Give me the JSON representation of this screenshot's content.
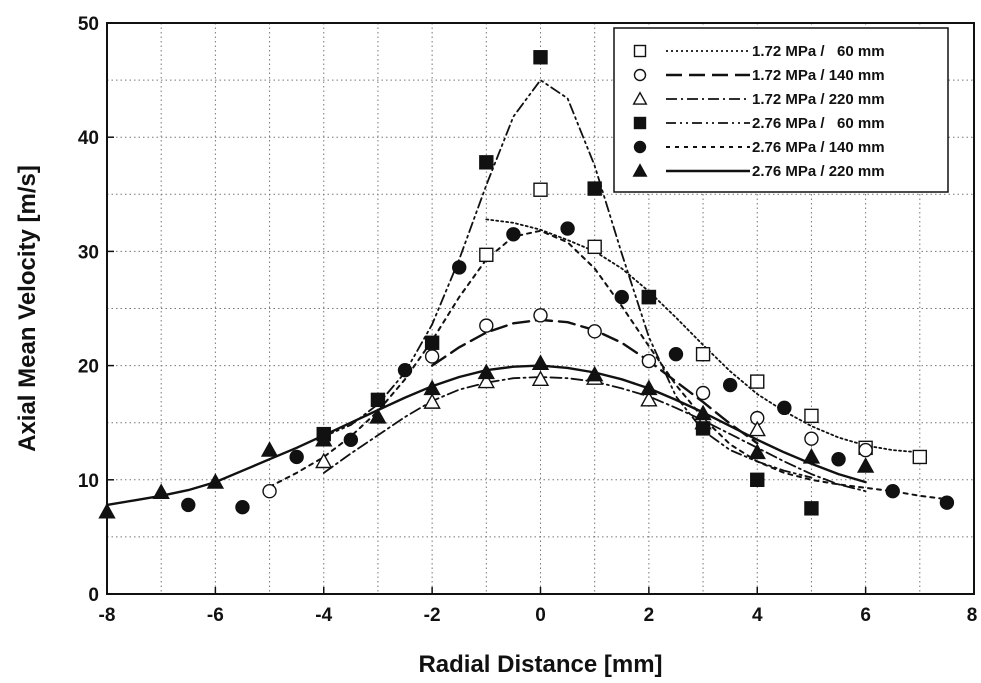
{
  "chart_data": {
    "type": "scatter",
    "title": "",
    "xlabel": "Radial Distance [mm]",
    "ylabel": "Axial Mean Velocity [m/s]",
    "xlim": [
      -8,
      8
    ],
    "ylim": [
      0,
      50
    ],
    "x_ticks": [
      -8,
      -6,
      -4,
      -2,
      0,
      2,
      4,
      6,
      8
    ],
    "y_ticks": [
      0,
      10,
      20,
      30,
      40,
      50
    ],
    "x_tick_labels": [
      "-8",
      "-6",
      "-4",
      "-2",
      "0",
      "2",
      "4",
      "6",
      "8"
    ],
    "y_tick_labels": [
      "0",
      "10",
      "20",
      "30",
      "40",
      "50"
    ],
    "grid": true,
    "legend_position": "top-right",
    "series": [
      {
        "name": "1.72 MPa /   60 mm",
        "marker": "square-open",
        "line_style": "dotted",
        "points": [
          [
            -1,
            29.7
          ],
          [
            0,
            35.4
          ],
          [
            1,
            30.4
          ],
          [
            2,
            26.0
          ],
          [
            3,
            21.0
          ],
          [
            4,
            18.6
          ],
          [
            5,
            15.6
          ],
          [
            6,
            12.8
          ],
          [
            7,
            12.0
          ]
        ],
        "fit": [
          [
            -1,
            32.8
          ],
          [
            -0.5,
            32.5
          ],
          [
            0,
            31.9
          ],
          [
            0.5,
            31.0
          ],
          [
            1,
            30.0
          ],
          [
            1.5,
            28.5
          ],
          [
            2,
            26.5
          ],
          [
            2.5,
            24.2
          ],
          [
            3,
            21.8
          ],
          [
            3.5,
            19.5
          ],
          [
            4,
            17.5
          ],
          [
            4.5,
            16.0
          ],
          [
            5,
            14.7
          ],
          [
            5.5,
            13.7
          ],
          [
            6,
            13.0
          ],
          [
            6.5,
            12.6
          ],
          [
            7,
            12.4
          ]
        ]
      },
      {
        "name": "1.72 MPa / 140 mm",
        "marker": "circle-open",
        "line_style": "long-dash",
        "points": [
          [
            -5,
            9.0
          ],
          [
            -2,
            20.8
          ],
          [
            -1,
            23.5
          ],
          [
            0,
            24.4
          ],
          [
            1,
            23.0
          ],
          [
            2,
            20.4
          ],
          [
            3,
            17.6
          ],
          [
            4,
            15.4
          ],
          [
            5,
            13.6
          ],
          [
            6,
            12.6
          ]
        ],
        "fit": [
          [
            -2,
            20.0
          ],
          [
            -1.5,
            21.6
          ],
          [
            -1,
            22.9
          ],
          [
            -0.5,
            23.7
          ],
          [
            0,
            24.0
          ],
          [
            0.5,
            23.8
          ],
          [
            1,
            23.1
          ],
          [
            1.5,
            22.0
          ],
          [
            2,
            20.4
          ],
          [
            2.5,
            18.6
          ],
          [
            3,
            16.8
          ],
          [
            3.5,
            14.9
          ],
          [
            4,
            13.2
          ]
        ]
      },
      {
        "name": "1.72 MPa / 220 mm",
        "marker": "triangle-open",
        "line_style": "dash-dot",
        "points": [
          [
            -4,
            11.6
          ],
          [
            -2,
            16.8
          ],
          [
            -1,
            18.6
          ],
          [
            0,
            18.8
          ],
          [
            1,
            18.9
          ],
          [
            2,
            17.0
          ],
          [
            3,
            15.0
          ],
          [
            4,
            14.4
          ]
        ],
        "fit": [
          [
            -4,
            10.6
          ],
          [
            -3.5,
            12.3
          ],
          [
            -3,
            13.9
          ],
          [
            -2.5,
            15.5
          ],
          [
            -2,
            16.9
          ],
          [
            -1.5,
            17.9
          ],
          [
            -1,
            18.5
          ],
          [
            -0.5,
            18.9
          ],
          [
            0,
            19.0
          ],
          [
            0.5,
            18.9
          ],
          [
            1,
            18.6
          ],
          [
            1.5,
            18.0
          ],
          [
            2,
            17.3
          ],
          [
            2.5,
            16.3
          ],
          [
            3,
            15.2
          ],
          [
            3.5,
            14.0
          ],
          [
            4,
            12.8
          ],
          [
            4.5,
            11.6
          ],
          [
            5,
            10.5
          ],
          [
            5.5,
            9.6
          ],
          [
            6,
            9.0
          ]
        ]
      },
      {
        "name": "2.76 MPa /   60 mm",
        "marker": "square-filled",
        "line_style": "dash-dot-dot",
        "points": [
          [
            -4,
            14.0
          ],
          [
            -3,
            17.0
          ],
          [
            -2,
            22.0
          ],
          [
            -1,
            37.8
          ],
          [
            0,
            47.0
          ],
          [
            1,
            35.5
          ],
          [
            2,
            26.0
          ],
          [
            3,
            14.5
          ],
          [
            4,
            10.0
          ],
          [
            5,
            7.5
          ]
        ],
        "fit": [
          [
            -4,
            13.8
          ],
          [
            -3.5,
            14.8
          ],
          [
            -3,
            16.6
          ],
          [
            -2.5,
            19.4
          ],
          [
            -2,
            23.6
          ],
          [
            -1.5,
            29.3
          ],
          [
            -1,
            35.8
          ],
          [
            -0.5,
            41.8
          ],
          [
            0,
            45.0
          ],
          [
            0.5,
            43.4
          ],
          [
            1,
            37.5
          ],
          [
            1.5,
            29.8
          ],
          [
            2,
            22.5
          ],
          [
            2.5,
            17.3
          ],
          [
            3,
            14.3
          ],
          [
            3.5,
            12.6
          ],
          [
            4,
            11.6
          ],
          [
            4.5,
            10.8
          ],
          [
            5,
            10.2
          ]
        ]
      },
      {
        "name": "2.76 MPa / 140 mm",
        "marker": "circle-filled",
        "line_style": "short-dash",
        "points": [
          [
            -6.5,
            7.8
          ],
          [
            -5.5,
            7.6
          ],
          [
            -4.5,
            12.0
          ],
          [
            -3.5,
            13.5
          ],
          [
            -2.5,
            19.6
          ],
          [
            -1.5,
            28.6
          ],
          [
            -0.5,
            31.5
          ],
          [
            0.5,
            32.0
          ],
          [
            1.5,
            26.0
          ],
          [
            2.5,
            21.0
          ],
          [
            3.5,
            18.3
          ],
          [
            4.5,
            16.3
          ],
          [
            5.5,
            11.8
          ],
          [
            6.5,
            9.0
          ],
          [
            7.5,
            8.0
          ]
        ],
        "fit": [
          [
            -5,
            9.4
          ],
          [
            -4.5,
            10.6
          ],
          [
            -4,
            12.0
          ],
          [
            -3.5,
            13.8
          ],
          [
            -3,
            16.0
          ],
          [
            -2.5,
            18.8
          ],
          [
            -2,
            22.2
          ],
          [
            -1.5,
            26.0
          ],
          [
            -1,
            29.3
          ],
          [
            -0.5,
            31.3
          ],
          [
            0,
            31.8
          ],
          [
            0.5,
            30.8
          ],
          [
            1,
            28.5
          ],
          [
            1.5,
            25.2
          ],
          [
            2,
            21.7
          ],
          [
            2.5,
            18.3
          ],
          [
            3,
            15.4
          ],
          [
            3.5,
            13.1
          ],
          [
            4,
            11.6
          ],
          [
            4.5,
            10.6
          ],
          [
            5,
            10.0
          ],
          [
            5.5,
            9.6
          ],
          [
            6,
            9.3
          ],
          [
            6.5,
            9.0
          ],
          [
            7,
            8.6
          ],
          [
            7.5,
            8.3
          ]
        ]
      },
      {
        "name": "2.76 MPa / 220 mm",
        "marker": "triangle-filled",
        "line_style": "solid",
        "points": [
          [
            -8,
            7.2
          ],
          [
            -7,
            8.9
          ],
          [
            -6,
            9.8
          ],
          [
            -5,
            12.6
          ],
          [
            -4,
            13.5
          ],
          [
            -3,
            15.5
          ],
          [
            -2,
            18.0
          ],
          [
            -1,
            19.4
          ],
          [
            0,
            20.2
          ],
          [
            1,
            19.2
          ],
          [
            2,
            18.0
          ],
          [
            3,
            15.8
          ],
          [
            4,
            12.4
          ],
          [
            5,
            12.0
          ],
          [
            6,
            11.2
          ]
        ],
        "fit": [
          [
            -8,
            7.8
          ],
          [
            -7.5,
            8.2
          ],
          [
            -7,
            8.6
          ],
          [
            -6.5,
            9.1
          ],
          [
            -6,
            9.8
          ],
          [
            -5.5,
            10.8
          ],
          [
            -5,
            11.8
          ],
          [
            -4.5,
            12.8
          ],
          [
            -4,
            13.9
          ],
          [
            -3.5,
            15.0
          ],
          [
            -3,
            16.1
          ],
          [
            -2.5,
            17.2
          ],
          [
            -2,
            18.2
          ],
          [
            -1.5,
            19.0
          ],
          [
            -1,
            19.6
          ],
          [
            -0.5,
            19.9
          ],
          [
            0,
            20.0
          ],
          [
            0.5,
            19.8
          ],
          [
            1,
            19.4
          ],
          [
            1.5,
            18.8
          ],
          [
            2,
            18.0
          ],
          [
            2.5,
            17.0
          ],
          [
            3,
            15.9
          ],
          [
            3.5,
            14.7
          ],
          [
            4,
            13.5
          ],
          [
            4.5,
            12.4
          ],
          [
            5,
            11.4
          ],
          [
            5.5,
            10.5
          ],
          [
            6,
            9.8
          ]
        ]
      }
    ]
  }
}
